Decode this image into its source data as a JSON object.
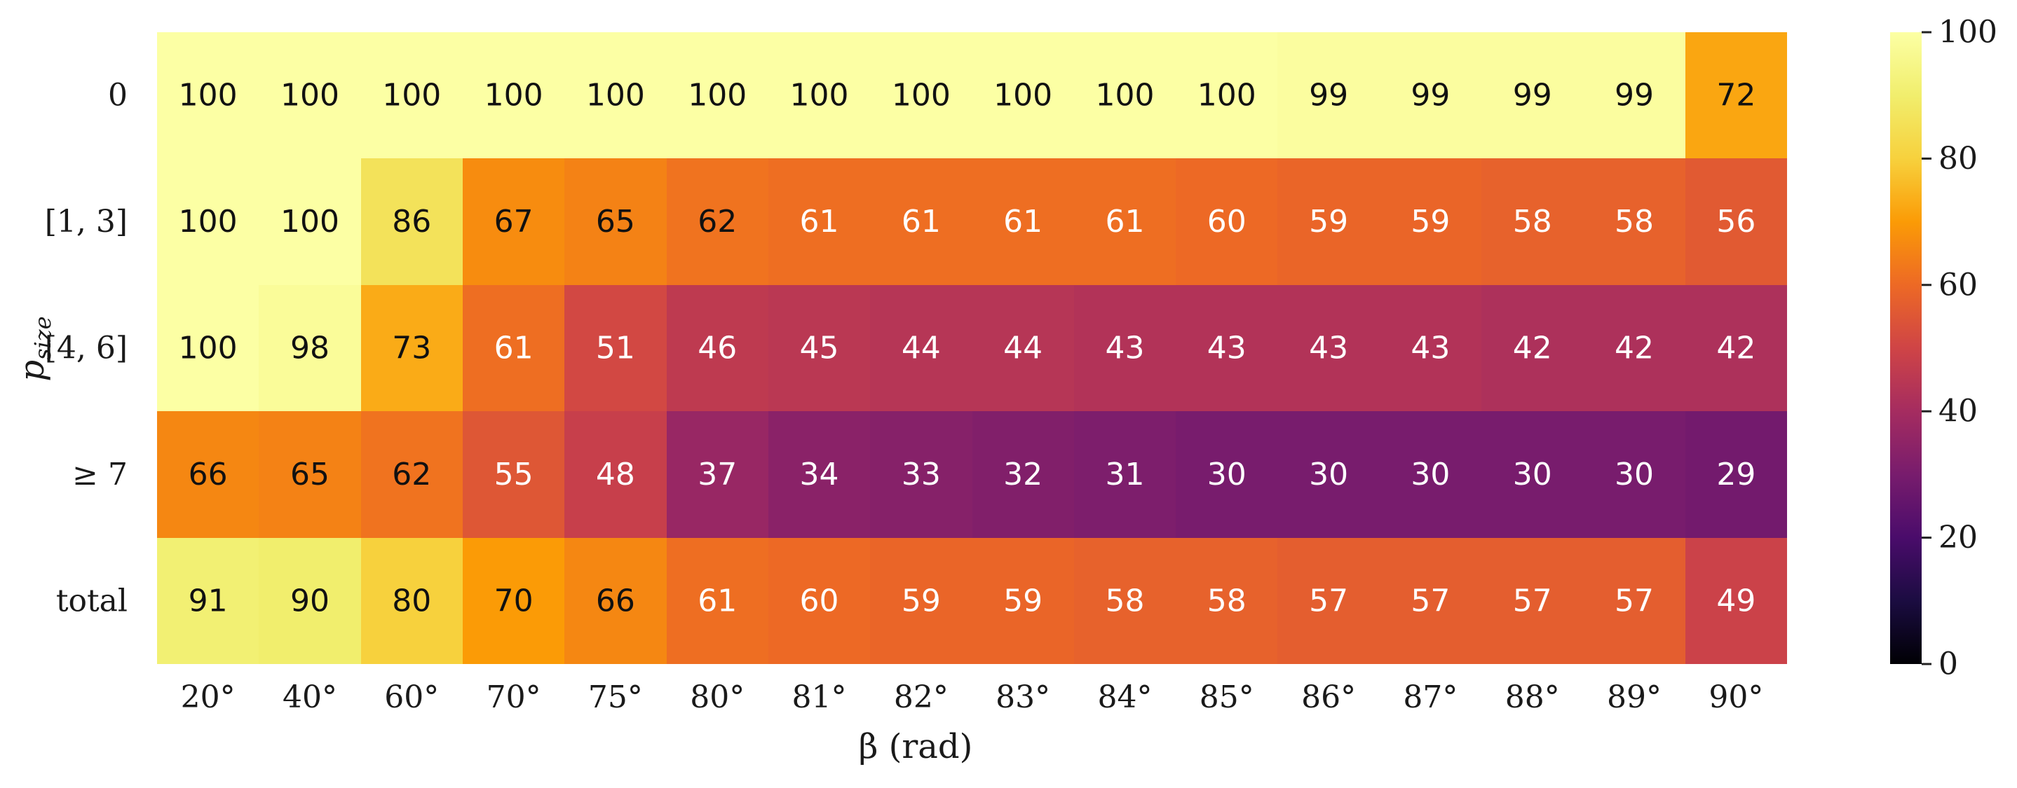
{
  "chart_data": {
    "type": "heatmap",
    "title": "",
    "xlabel": "β (rad)",
    "ylabel_main": "p",
    "ylabel_sub": "size",
    "x_categories": [
      "20°",
      "40°",
      "60°",
      "70°",
      "75°",
      "80°",
      "81°",
      "82°",
      "83°",
      "84°",
      "85°",
      "86°",
      "87°",
      "88°",
      "89°",
      "90°"
    ],
    "y_categories": [
      "0",
      "[1, 3]",
      "[4, 6]",
      "≥ 7",
      "total"
    ],
    "values": [
      [
        100,
        100,
        100,
        100,
        100,
        100,
        100,
        100,
        100,
        100,
        100,
        99,
        99,
        99,
        99,
        72
      ],
      [
        100,
        100,
        86,
        67,
        65,
        62,
        61,
        61,
        61,
        61,
        60,
        59,
        59,
        58,
        58,
        56
      ],
      [
        100,
        98,
        73,
        61,
        51,
        46,
        45,
        44,
        44,
        43,
        43,
        43,
        43,
        42,
        42,
        42
      ],
      [
        66,
        65,
        62,
        55,
        48,
        37,
        34,
        33,
        32,
        31,
        30,
        30,
        30,
        30,
        30,
        29
      ],
      [
        91,
        90,
        80,
        70,
        66,
        61,
        60,
        59,
        59,
        58,
        58,
        57,
        57,
        57,
        57,
        49
      ]
    ],
    "colormap": "inferno",
    "colorbar": {
      "min": 0,
      "max": 100,
      "ticks": [
        0,
        20,
        40,
        60,
        80,
        100
      ]
    }
  }
}
